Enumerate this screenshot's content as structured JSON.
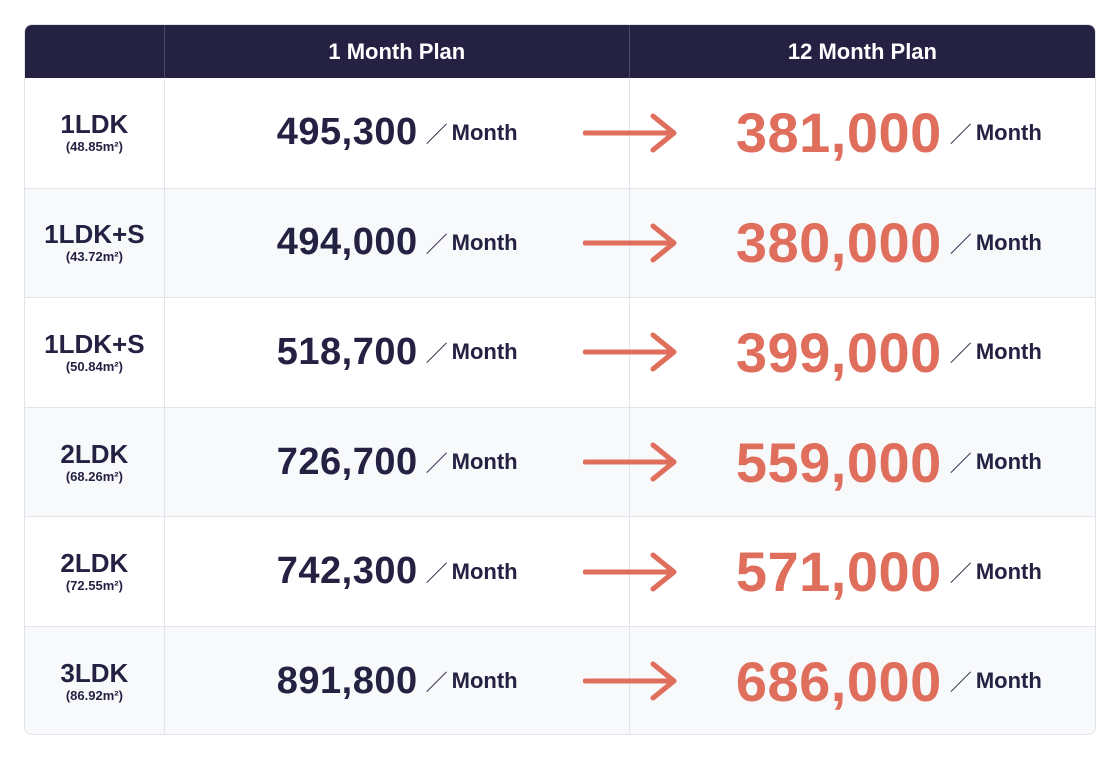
{
  "header": {
    "col_type": "",
    "col_monthly": "1 Month Plan",
    "col_yearly": "12 Month Plan"
  },
  "rows": [
    {
      "type": "1LDK",
      "area": "(48.85",
      "area_unit": "m²",
      "area_close": ")",
      "price_1m": "495,300",
      "price_12m": "381,000"
    },
    {
      "type": "1LDK+S",
      "area": "(43.72",
      "area_unit": "m²",
      "area_close": ")",
      "price_1m": "494,000",
      "price_12m": "380,000"
    },
    {
      "type": "1LDK+S",
      "area": "(50.84",
      "area_unit": "m²",
      "area_close": ")",
      "price_1m": "518,700",
      "price_12m": "399,000"
    },
    {
      "type": "2LDK",
      "area": "(68.26",
      "area_unit": "m²",
      "area_close": ")",
      "price_1m": "726,700",
      "price_12m": "559,000"
    },
    {
      "type": "2LDK",
      "area": "(72.55",
      "area_unit": "m²",
      "area_close": ")",
      "price_1m": "742,300",
      "price_12m": "571,000"
    },
    {
      "type": "3LDK",
      "area": "(86.92",
      "area_unit": "m²",
      "area_close": ")",
      "price_1m": "891,800",
      "price_12m": "686,000"
    }
  ],
  "labels": {
    "slash": "／",
    "per_month": "Month"
  },
  "icons": {
    "arrow": "arrow-right-icon"
  },
  "colors": {
    "header_bg": "#242143",
    "text_dark": "#242143",
    "accent": "#df6e5c"
  }
}
